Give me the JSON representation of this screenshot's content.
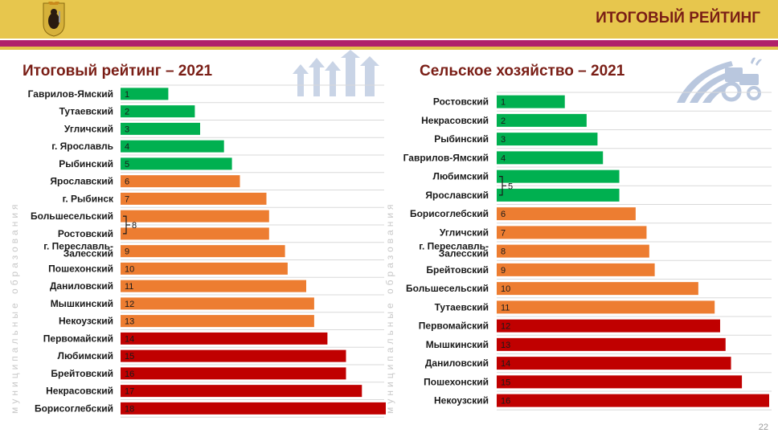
{
  "header": {
    "title": "ИТОГОВЫЙ РЕЙТИНГ"
  },
  "side_label": "муниципальные образования",
  "page_number": "22",
  "colors": {
    "green": "#00b050",
    "orange": "#ed7d31",
    "red": "#c00000",
    "title": "#7a1e16"
  },
  "icons": {
    "left": "growth-arrows-icon",
    "right": "tractor-field-icon",
    "crest": "yaroslavl-bear-crest-icon"
  },
  "chart_data": [
    {
      "type": "bar",
      "title": "Итоговый рейтинг – 2021",
      "categories": [
        "Гаврилов-Ямский",
        "Тутаевский",
        "Угличский",
        "г. Ярославль",
        "Рыбинский",
        "Ярославский",
        "г. Рыбинск",
        "Большесельский",
        "Ростовский",
        "г. Переславль-Залесский",
        "Пошехонский",
        "Даниловский",
        "Мышкинский",
        "Некоузский",
        "Первомайский",
        "Любимский",
        "Брейтовский",
        "Некрасовский",
        "Борисоглебский"
      ],
      "label_lines": [
        [
          "Гаврилов-Ямский"
        ],
        [
          "Тутаевский"
        ],
        [
          "Угличский"
        ],
        [
          "г. Ярославль"
        ],
        [
          "Рыбинский"
        ],
        [
          "Ярославский"
        ],
        [
          "г. Рыбинск"
        ],
        [
          "Большесельский"
        ],
        [
          "Ростовский"
        ],
        [
          "г. Переславль-",
          "Залесский"
        ],
        [
          "Пошехонский"
        ],
        [
          "Даниловский"
        ],
        [
          "Мышкинский"
        ],
        [
          "Некоузский"
        ],
        [
          "Первомайский"
        ],
        [
          "Любимский"
        ],
        [
          "Брейтовский"
        ],
        [
          "Некрасовский"
        ],
        [
          "Борисоглебский"
        ]
      ],
      "ranks": [
        "1",
        "2",
        "3",
        "4",
        "5",
        "6",
        "7",
        "",
        "",
        "9",
        "10",
        "11",
        "12",
        "13",
        "14",
        "15",
        "16",
        "17",
        "18"
      ],
      "values": [
        1,
        2,
        3,
        4,
        5,
        6,
        7,
        8,
        8,
        9,
        10,
        11,
        12,
        13,
        14,
        15,
        16,
        17,
        18
      ],
      "colors": [
        "green",
        "green",
        "green",
        "green",
        "green",
        "orange",
        "orange",
        "orange",
        "orange",
        "orange",
        "orange",
        "orange",
        "orange",
        "orange",
        "red",
        "red",
        "red",
        "red",
        "red"
      ],
      "bar_lengths": [
        0.18,
        0.28,
        0.3,
        0.39,
        0.42,
        0.45,
        0.55,
        0.56,
        0.56,
        0.62,
        0.63,
        0.7,
        0.73,
        0.73,
        0.78,
        0.85,
        0.85,
        0.91,
        1.0
      ],
      "tied_group": {
        "from": 7,
        "to": 8,
        "label": "8"
      }
    },
    {
      "type": "bar",
      "title": "Сельское хозяйство – 2021",
      "categories": [
        "Ростовский",
        "Некрасовский",
        "Рыбинский",
        "Гаврилов-Ямский",
        "Любимский",
        "Ярославский",
        "Борисоглебский",
        "Угличский",
        "г. Переславль-Залесский",
        "Брейтовский",
        "Большесельский",
        "Тутаевский",
        "Первомайский",
        "Мышкинский",
        "Даниловский",
        "Пошехонский",
        "Некоузский"
      ],
      "label_lines": [
        [
          "Ростовский"
        ],
        [
          "Некрасовский"
        ],
        [
          "Рыбинский"
        ],
        [
          "Гаврилов-Ямский"
        ],
        [
          "Любимский"
        ],
        [
          "Ярославский"
        ],
        [
          "Борисоглебский"
        ],
        [
          "Угличский"
        ],
        [
          "г. Переславль-",
          "Залесский"
        ],
        [
          "Брейтовский"
        ],
        [
          "Большесельский"
        ],
        [
          "Тутаевский"
        ],
        [
          "Первомайский"
        ],
        [
          "Мышкинский"
        ],
        [
          "Даниловский"
        ],
        [
          "Пошехонский"
        ],
        [
          "Некоузский"
        ]
      ],
      "ranks": [
        "1",
        "2",
        "3",
        "4",
        "",
        "",
        "6",
        "7",
        "8",
        "9",
        "10",
        "11",
        "12",
        "13",
        "14",
        "15",
        "16"
      ],
      "values": [
        1,
        2,
        3,
        4,
        5,
        5,
        6,
        7,
        8,
        9,
        10,
        11,
        12,
        13,
        14,
        15,
        16
      ],
      "colors": [
        "green",
        "green",
        "green",
        "green",
        "green",
        "green",
        "orange",
        "orange",
        "orange",
        "orange",
        "orange",
        "orange",
        "red",
        "red",
        "red",
        "red",
        "red"
      ],
      "bar_lengths": [
        0.25,
        0.33,
        0.37,
        0.39,
        0.45,
        0.45,
        0.51,
        0.55,
        0.56,
        0.58,
        0.74,
        0.8,
        0.82,
        0.84,
        0.86,
        0.9,
        1.0
      ],
      "tied_group": {
        "from": 4,
        "to": 5,
        "label": "5"
      }
    }
  ]
}
